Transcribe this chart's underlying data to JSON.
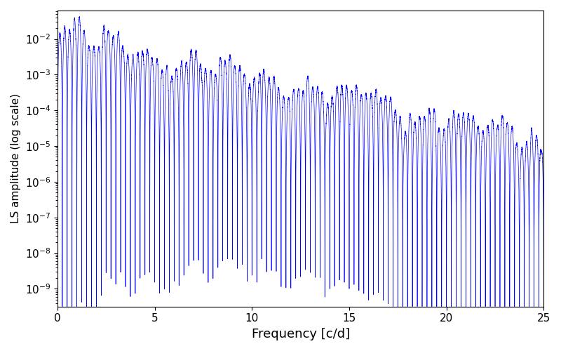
{
  "xlabel": "Frequency [c/d]",
  "ylabel": "LS amplitude (log scale)",
  "xlim": [
    0,
    25
  ],
  "line_color": "#0000ff",
  "linewidth": 0.5,
  "background_color": "#ffffff",
  "freq_min": 0.0,
  "freq_max": 25.0,
  "n_points": 20000,
  "seed": 42,
  "xlabel_fontsize": 13,
  "ylabel_fontsize": 11,
  "tick_fontsize": 11
}
